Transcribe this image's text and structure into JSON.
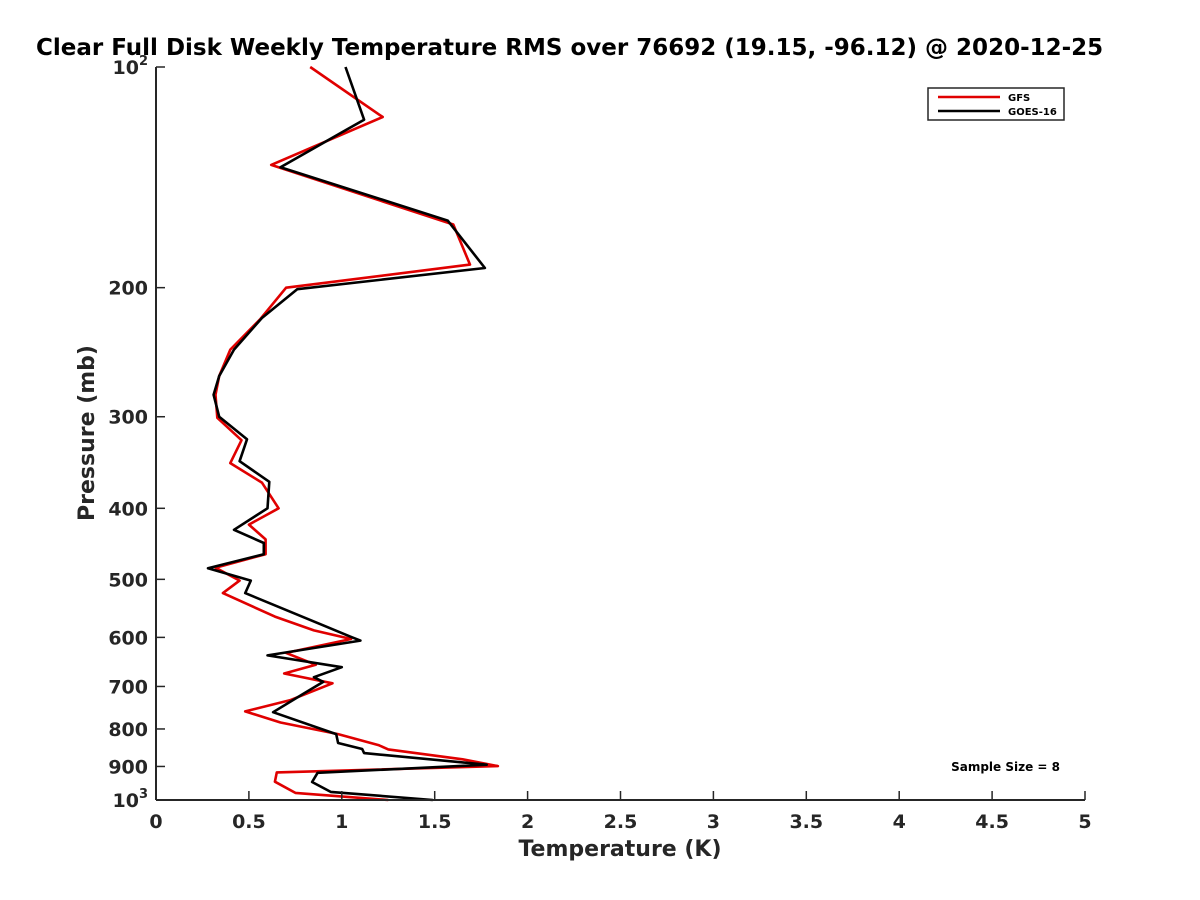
{
  "chart_data": {
    "type": "line",
    "title": "Clear Full Disk Weekly Temperature RMS over 76692 (19.15, -96.12) @ 2020-12-25",
    "xlabel": "Temperature (K)",
    "ylabel": "Pressure (mb)",
    "xlim": [
      0,
      5
    ],
    "ylim": [
      100,
      1000
    ],
    "y_scale": "log",
    "y_reversed": true,
    "x_ticks": [
      "0",
      "0.5",
      "1",
      "1.5",
      "2",
      "2.5",
      "3",
      "3.5",
      "4",
      "4.5",
      "5"
    ],
    "y_ticks": [
      {
        "value": 100,
        "label": "10",
        "sup": "2"
      },
      {
        "value": 200,
        "label": "200",
        "sup": ""
      },
      {
        "value": 300,
        "label": "300",
        "sup": ""
      },
      {
        "value": 400,
        "label": "400",
        "sup": ""
      },
      {
        "value": 500,
        "label": "500",
        "sup": ""
      },
      {
        "value": 600,
        "label": "600",
        "sup": ""
      },
      {
        "value": 700,
        "label": "700",
        "sup": ""
      },
      {
        "value": 800,
        "label": "800",
        "sup": ""
      },
      {
        "value": 900,
        "label": "900",
        "sup": ""
      },
      {
        "value": 1000,
        "label": "10",
        "sup": "3"
      }
    ],
    "grid": false,
    "legend_position": "top-right",
    "annotation": "Sample Size = 8",
    "series": [
      {
        "name": "GFS",
        "color": "#e00000",
        "points": [
          [
            0.83,
            100
          ],
          [
            1.22,
            117
          ],
          [
            0.62,
            136
          ],
          [
            1.6,
            164
          ],
          [
            1.69,
            186
          ],
          [
            0.7,
            200
          ],
          [
            0.56,
            221
          ],
          [
            0.4,
            243
          ],
          [
            0.34,
            264
          ],
          [
            0.32,
            280
          ],
          [
            0.33,
            301
          ],
          [
            0.46,
            323
          ],
          [
            0.4,
            347
          ],
          [
            0.57,
            369
          ],
          [
            0.66,
            400
          ],
          [
            0.5,
            421
          ],
          [
            0.59,
            441
          ],
          [
            0.59,
            462
          ],
          [
            0.32,
            482
          ],
          [
            0.45,
            502
          ],
          [
            0.36,
            522
          ],
          [
            0.64,
            562
          ],
          [
            0.85,
            587
          ],
          [
            1.05,
            603
          ],
          [
            0.7,
            630
          ],
          [
            0.86,
            654
          ],
          [
            0.69,
            672
          ],
          [
            0.95,
            693
          ],
          [
            0.72,
            731
          ],
          [
            0.48,
            757
          ],
          [
            0.67,
            784
          ],
          [
            0.98,
            813
          ],
          [
            1.2,
            842
          ],
          [
            1.25,
            853
          ],
          [
            1.65,
            880
          ],
          [
            1.84,
            899
          ],
          [
            0.65,
            917
          ],
          [
            0.64,
            944
          ],
          [
            0.75,
            978
          ],
          [
            1.25,
            1000
          ]
        ]
      },
      {
        "name": "GOES-16",
        "color": "#000000",
        "points": [
          [
            1.02,
            100
          ],
          [
            1.12,
            118
          ],
          [
            0.67,
            137
          ],
          [
            1.57,
            162
          ],
          [
            1.77,
            188
          ],
          [
            0.76,
            201
          ],
          [
            0.57,
            220
          ],
          [
            0.42,
            243
          ],
          [
            0.34,
            264
          ],
          [
            0.31,
            280
          ],
          [
            0.34,
            300
          ],
          [
            0.49,
            322
          ],
          [
            0.45,
            345
          ],
          [
            0.61,
            368
          ],
          [
            0.6,
            400
          ],
          [
            0.42,
            428
          ],
          [
            0.58,
            446
          ],
          [
            0.58,
            462
          ],
          [
            0.28,
            483
          ],
          [
            0.51,
            502
          ],
          [
            0.48,
            522
          ],
          [
            0.88,
            575
          ],
          [
            1.05,
            599
          ],
          [
            1.1,
            606
          ],
          [
            0.6,
            635
          ],
          [
            1.0,
            659
          ],
          [
            0.85,
            680
          ],
          [
            0.9,
            690
          ],
          [
            0.79,
            717
          ],
          [
            0.63,
            759
          ],
          [
            0.97,
            813
          ],
          [
            0.98,
            836
          ],
          [
            1.11,
            852
          ],
          [
            1.12,
            863
          ],
          [
            1.78,
            895
          ],
          [
            0.87,
            918
          ],
          [
            0.84,
            945
          ],
          [
            0.94,
            975
          ],
          [
            1.49,
            1000
          ]
        ]
      }
    ]
  }
}
